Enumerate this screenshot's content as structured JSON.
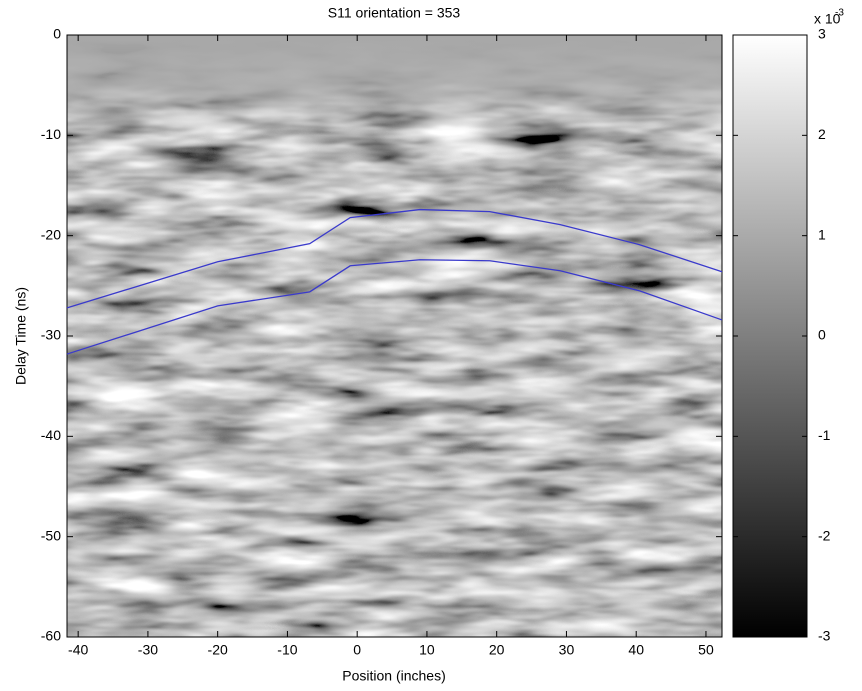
{
  "chart_data": {
    "type": "image",
    "title": "S11  orientation = 353",
    "x_label": "Position (inches)",
    "y_label": "Delay Time (ns)",
    "xlim": [
      -41.6,
      52.3
    ],
    "ylim": [
      -60,
      0
    ],
    "xticks": [
      -40,
      -30,
      -20,
      -10,
      0,
      10,
      20,
      30,
      40,
      50
    ],
    "yticks": [
      0,
      -10,
      -20,
      -30,
      -40,
      -50,
      -60
    ],
    "series": [
      {
        "color": "#3a3acc",
        "x": [
          -41.6,
          -20,
          -6.8,
          -1.0,
          9.0,
          19.0,
          29.1,
          40.5,
          52.3
        ],
        "values": [
          -27.2,
          -22.6,
          -20.8,
          -18.2,
          -17.4,
          -17.6,
          -18.9,
          -20.9,
          -23.6
        ]
      },
      {
        "color": "#3a3acc",
        "x": [
          -41.6,
          -20,
          -6.8,
          -1.0,
          9.0,
          19.0,
          29.1,
          40.5,
          52.3
        ],
        "values": [
          -31.8,
          -27.0,
          -25.6,
          -23.0,
          -22.4,
          -22.5,
          -23.5,
          -25.5,
          -28.4
        ]
      }
    ],
    "colorbar": {
      "lim": [
        -3,
        3
      ],
      "ticks": [
        3,
        2,
        1,
        0,
        -1,
        -2,
        -3
      ],
      "multiplier": "x 10",
      "exponent": "-3"
    }
  }
}
